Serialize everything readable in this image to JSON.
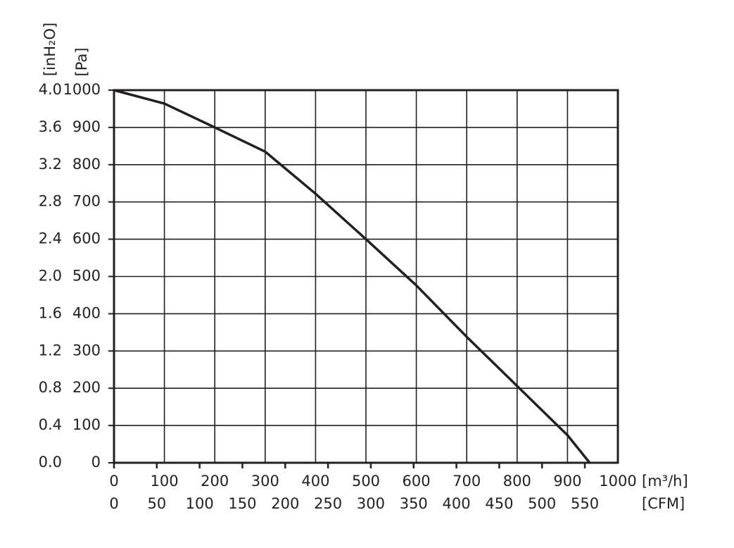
{
  "chart_data": {
    "type": "line",
    "x": [
      0,
      100,
      200,
      300,
      400,
      500,
      600,
      700,
      800,
      900,
      944
    ],
    "series": [
      {
        "color": "#231f20",
        "values": [
          1000,
          964,
          900,
          835,
          722,
          600,
          476,
          338,
          206,
          74,
          0
        ]
      }
    ],
    "xlabel": "[m³/h]",
    "ylabel": "[Pa]",
    "x2label": "[CFM]",
    "y2label": "[inH₂O]",
    "xlim": [
      0,
      1000
    ],
    "xticks": [
      0,
      100,
      200,
      300,
      400,
      500,
      600,
      700,
      800,
      900,
      1000
    ],
    "ylim": [
      0,
      1000
    ],
    "yticks": [
      0,
      100,
      200,
      300,
      400,
      500,
      600,
      700,
      800,
      900,
      1000
    ],
    "x2lim": [
      0,
      588.6
    ],
    "x2ticks": [
      0,
      50,
      100,
      150,
      200,
      250,
      300,
      350,
      400,
      450,
      500,
      550
    ],
    "y2lim": [
      0,
      4.0
    ],
    "y2ticks": [
      {
        "value": 0,
        "label": "0.0"
      },
      0.4,
      0.8,
      1.2,
      1.6,
      {
        "value": 2,
        "label": "2.0"
      },
      2.4,
      2.8,
      3.2,
      3.6,
      {
        "value": 4,
        "label": "4.0"
      }
    ],
    "grid": true
  }
}
